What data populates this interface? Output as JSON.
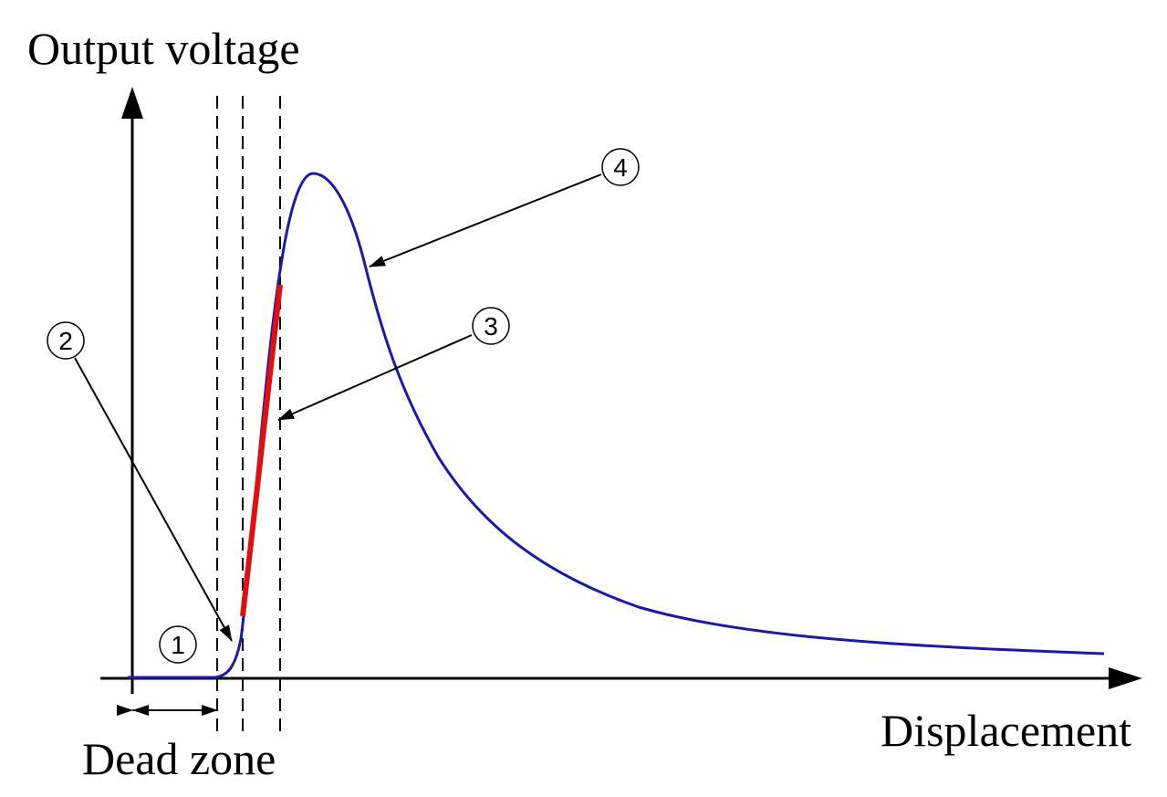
{
  "axes": {
    "y_label": "Output voltage",
    "x_label": "Displacement"
  },
  "annotations": {
    "dead_zone": "Dead zone",
    "markers": [
      "1",
      "2",
      "3",
      "4"
    ]
  }
}
